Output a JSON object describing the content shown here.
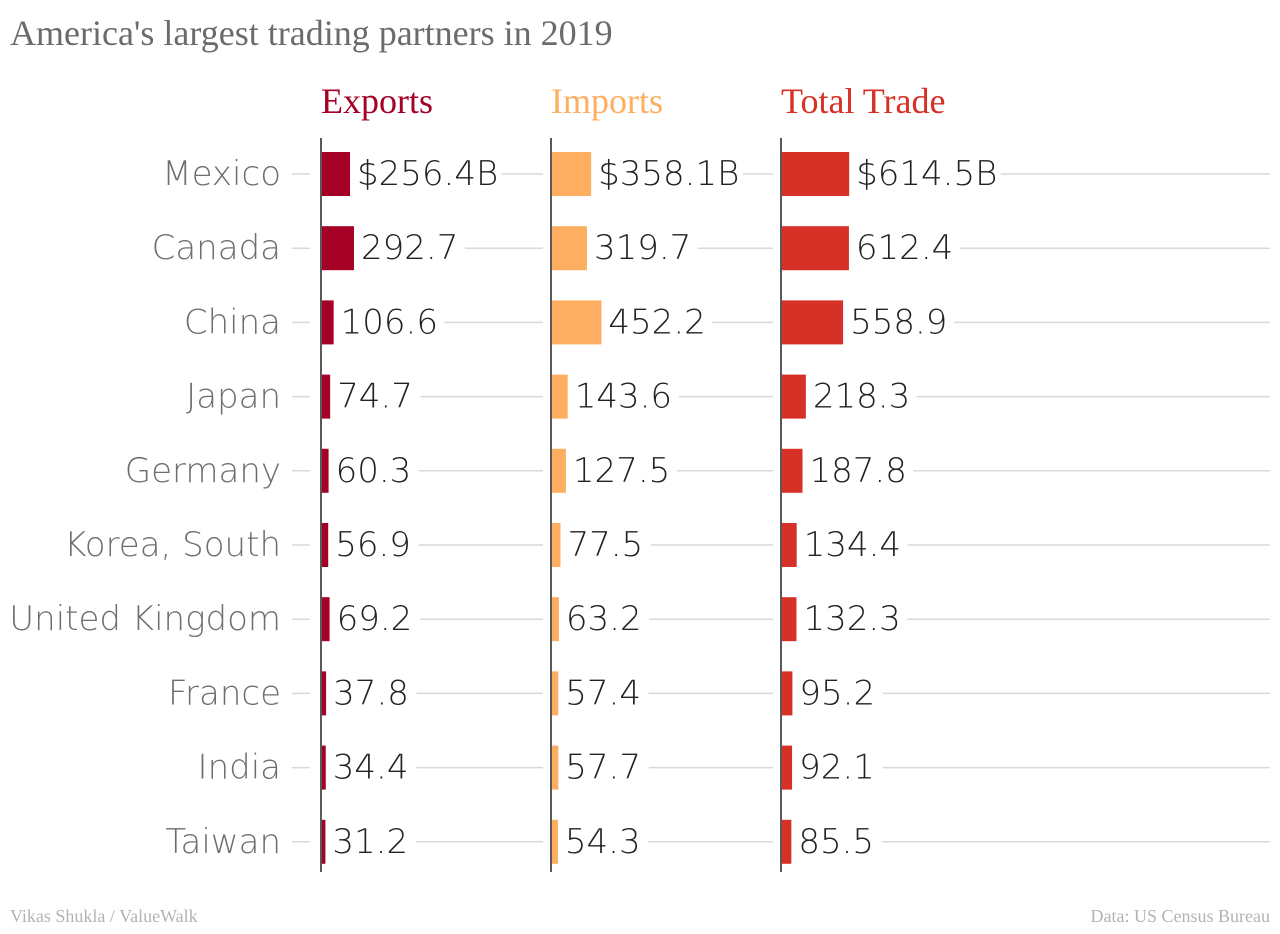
{
  "title": "America's largest trading partners in 2019",
  "source_left": "Vikas Shukla / ValueWalk",
  "source_right": "Data: US Census Bureau",
  "colors": {
    "exports": "#a50026",
    "imports": "#fdae61",
    "total": "#d73027",
    "label": "#6e6e6e",
    "value": "#222222",
    "grid": "#d9d9d9",
    "axis": "#222222"
  },
  "chart_data": {
    "type": "bar",
    "orientation": "horizontal",
    "categories": [
      "Mexico",
      "Canada",
      "China",
      "Japan",
      "Germany",
      "Korea, South",
      "United Kingdom",
      "France",
      "India",
      "Taiwan"
    ],
    "series": [
      {
        "name": "Exports",
        "values": [
          256.4,
          292.7,
          106.6,
          74.7,
          60.3,
          56.9,
          69.2,
          37.8,
          34.4,
          31.2
        ],
        "labels": [
          "$256.4B",
          "292.7",
          "106.6",
          "74.7",
          "60.3",
          "56.9",
          "69.2",
          "37.8",
          "34.4",
          "31.2"
        ]
      },
      {
        "name": "Imports",
        "values": [
          358.1,
          319.7,
          452.2,
          143.6,
          127.5,
          77.5,
          63.2,
          57.4,
          57.7,
          54.3
        ],
        "labels": [
          "$358.1B",
          "319.7",
          "452.2",
          "143.6",
          "127.5",
          "77.5",
          "63.2",
          "57.4",
          "57.7",
          "54.3"
        ]
      },
      {
        "name": "Total Trade",
        "values": [
          614.5,
          612.4,
          558.9,
          218.3,
          187.8,
          134.4,
          132.3,
          95.2,
          92.1,
          85.5
        ],
        "labels": [
          "$614.5B",
          "612.4",
          "558.9",
          "218.3",
          "187.8",
          "134.4",
          "132.3",
          "95.2",
          "92.1",
          "85.5"
        ]
      }
    ],
    "grid": true,
    "legend": "column headers"
  }
}
